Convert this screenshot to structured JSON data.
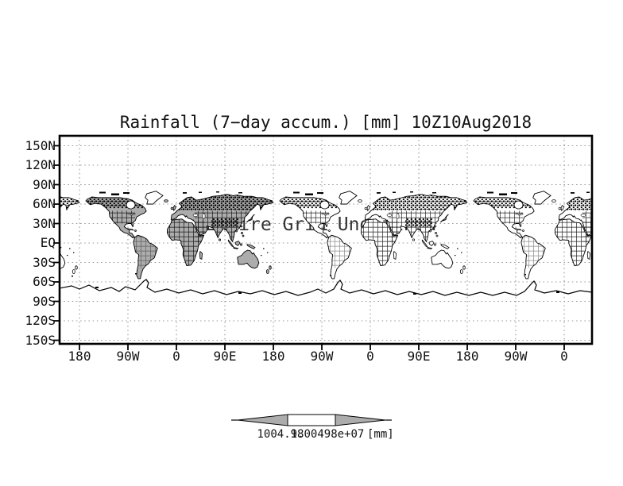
{
  "title": "Rainfall (7−day accum.) [mm] 10Z10Aug2018",
  "overlay_note": "Entire Grid Undefined",
  "y_axis": {
    "tick_labels": [
      "150N",
      "120N",
      "90N",
      "60N",
      "30N",
      "EQ",
      "30S",
      "60S",
      "90S",
      "120S",
      "150S"
    ]
  },
  "x_axis": {
    "tick_labels": [
      "180",
      "90W",
      "0",
      "90E",
      "180",
      "90W",
      "0",
      "90E",
      "180",
      "90W",
      "0"
    ]
  },
  "colorbar": {
    "min_label": "1004.98",
    "max_label": "1.00498e+07",
    "unit_label": "[mm]"
  },
  "colors": {
    "land_shaded": "#acacac",
    "land_unshaded": "#ffffff",
    "outline": "#000000",
    "gridline": "#9c9c9c",
    "background": "#ffffff"
  },
  "chart_data": {
    "type": "map",
    "title": "Rainfall (7−day accum.) [mm] 10Z10Aug2018",
    "valid_time": "10Z10Aug2018",
    "units": "mm",
    "x_ticks": [
      "180",
      "90W",
      "0",
      "90E",
      "180",
      "90W",
      "0",
      "90E",
      "180",
      "90W",
      "0"
    ],
    "y_ticks": [
      "150N",
      "120N",
      "90N",
      "60N",
      "30N",
      "EQ",
      "30S",
      "60S",
      "90S",
      "120S",
      "150S"
    ],
    "colorbar_labels": [
      "1004.98",
      "1.00498e+07"
    ],
    "colorbar_unit": "[mm]",
    "status_note": "Entire Grid Undefined",
    "grid": "dotted lat/lon graticule every 30 degrees",
    "projection": "equirectangular world map, longitude repeats ~2.75 wraps",
    "shading": "first longitude wrap land masses filled gray; other wraps outline only"
  }
}
